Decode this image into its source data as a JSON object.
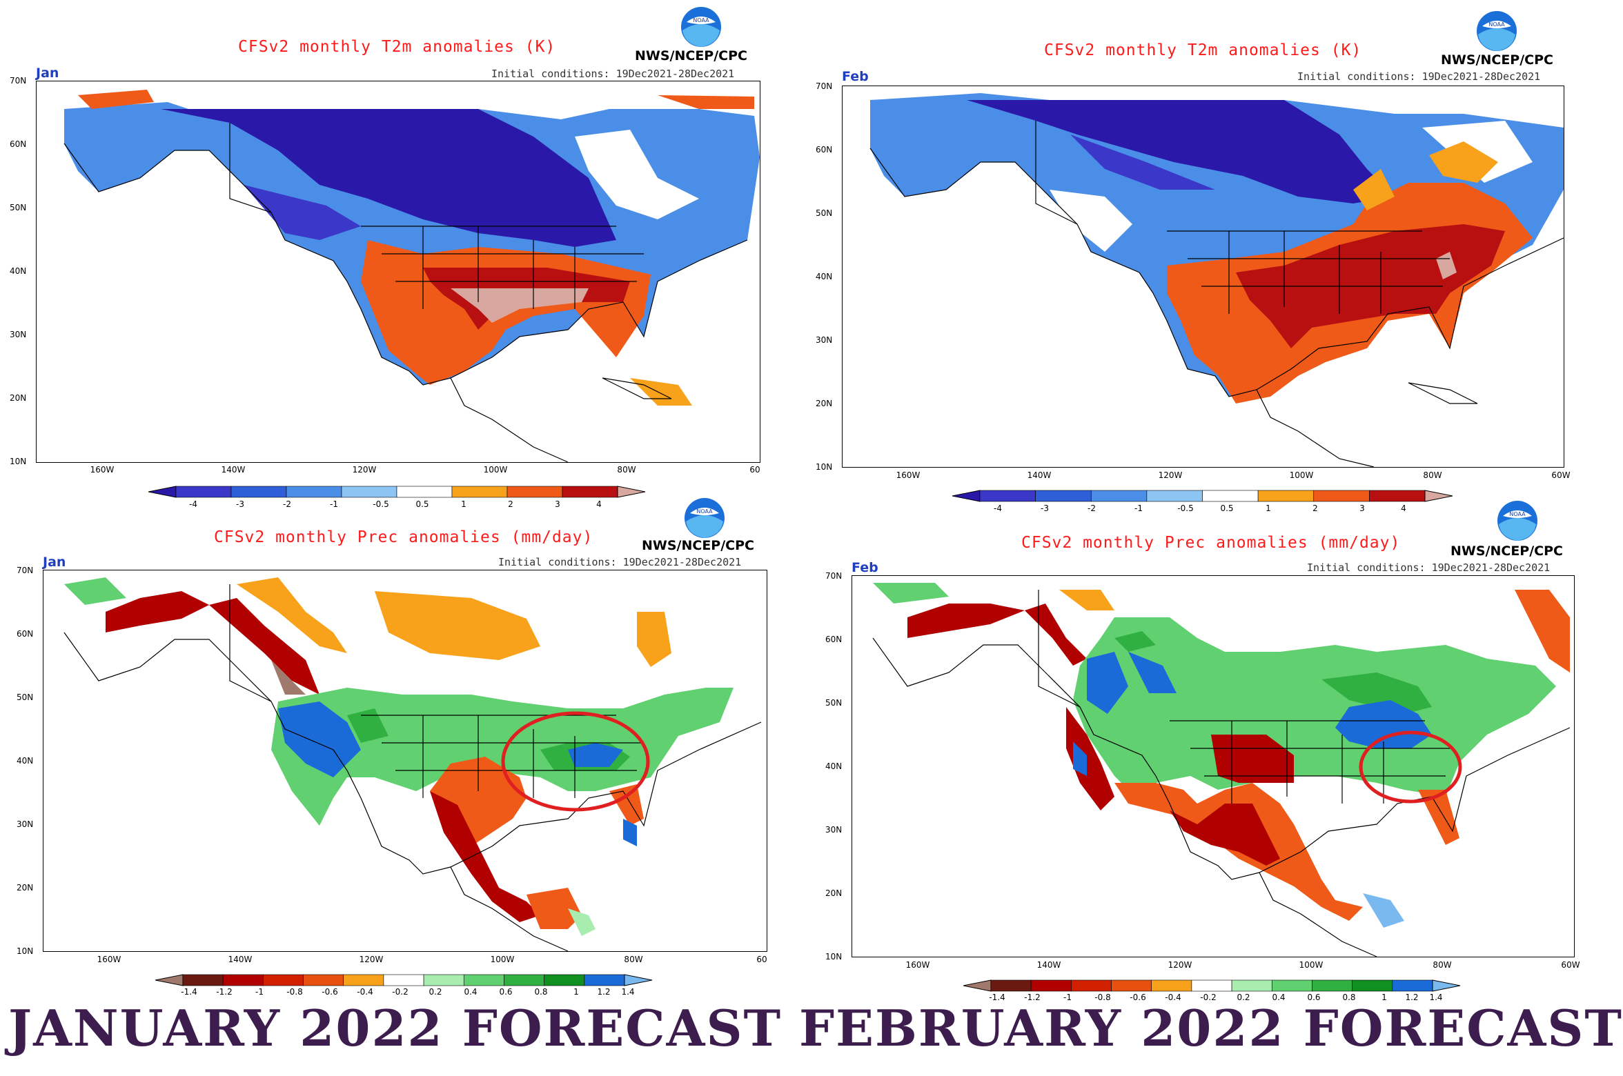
{
  "panels": [
    {
      "id": "jan-t2m",
      "title": "CFSv2 monthly T2m anomalies (K)",
      "credit": "NWS/NCEP/CPC",
      "month": "Jan 2022",
      "initial_conditions": "Initial conditions: 19Dec2021-28Dec2021",
      "lat_labels": [
        "70N",
        "60N",
        "50N",
        "40N",
        "30N",
        "20N",
        "10N"
      ],
      "lon_labels": [
        "160W",
        "140W",
        "120W",
        "100W",
        "80W",
        "60"
      ],
      "colorbar_labels": [
        "-4",
        "-3",
        "-2",
        "-1",
        "-0.5",
        "0.5",
        "1",
        "2",
        "3",
        "4"
      ]
    },
    {
      "id": "feb-t2m",
      "title": "CFSv2 monthly T2m anomalies (K)",
      "credit": "NWS/NCEP/CPC",
      "month": "Feb 2022",
      "initial_conditions": "Initial conditions: 19Dec2021-28Dec2021",
      "lat_labels": [
        "70N",
        "60N",
        "50N",
        "40N",
        "30N",
        "20N",
        "10N"
      ],
      "lon_labels": [
        "160W",
        "140W",
        "120W",
        "100W",
        "80W",
        "60W"
      ],
      "colorbar_labels": [
        "-4",
        "-3",
        "-2",
        "-1",
        "-0.5",
        "0.5",
        "1",
        "2",
        "3",
        "4"
      ]
    },
    {
      "id": "jan-prec",
      "title": "CFSv2 monthly Prec anomalies (mm/day)",
      "credit": "NWS/NCEP/CPC",
      "month": "Jan 2022",
      "initial_conditions": "Initial conditions: 19Dec2021-28Dec2021",
      "lat_labels": [
        "70N",
        "60N",
        "50N",
        "40N",
        "30N",
        "20N",
        "10N"
      ],
      "lon_labels": [
        "160W",
        "140W",
        "120W",
        "100W",
        "80W",
        "60"
      ],
      "colorbar_labels": [
        "-1.4",
        "-1.2",
        "-1",
        "-0.8",
        "-0.6",
        "-0.4",
        "-0.2",
        "0.2",
        "0.4",
        "0.6",
        "0.8",
        "1",
        "1.2",
        "1.4"
      ]
    },
    {
      "id": "feb-prec",
      "title": "CFSv2 monthly Prec anomalies (mm/day)",
      "credit": "NWS/NCEP/CPC",
      "month": "Feb 2022",
      "initial_conditions": "Initial conditions: 19Dec2021-28Dec2021",
      "lat_labels": [
        "70N",
        "60N",
        "50N",
        "40N",
        "30N",
        "20N",
        "10N"
      ],
      "lon_labels": [
        "160W",
        "140W",
        "120W",
        "100W",
        "80W",
        "60W"
      ],
      "colorbar_labels": [
        "-1.4",
        "-1.2",
        "-1",
        "-0.8",
        "-0.6",
        "-0.4",
        "-0.2",
        "0.2",
        "0.4",
        "0.6",
        "0.8",
        "1",
        "1.2",
        "1.4"
      ]
    }
  ],
  "logo_text": "NOAA",
  "captions": {
    "left": "JANUARY 2022 FORECAST",
    "right": "FEBRUARY 2022 FORECAST"
  },
  "colors": {
    "t2m": [
      "#2a18a8",
      "#3b37c8",
      "#2f5fd8",
      "#4a8ee8",
      "#8cc4f4",
      "#ffffff",
      "#f7a21a",
      "#f05a18",
      "#b81010",
      "#d8a8a0"
    ],
    "prec": [
      "#a0786c",
      "#6a1a10",
      "#b00000",
      "#d02000",
      "#e85010",
      "#f7a21a",
      "#ffffff",
      "#a8ecb0",
      "#60d070",
      "#30b040",
      "#109020",
      "#1a6ad8",
      "#7ab8f0"
    ],
    "highlight_circle": "#e02020",
    "caption": "#3d1c4e"
  }
}
